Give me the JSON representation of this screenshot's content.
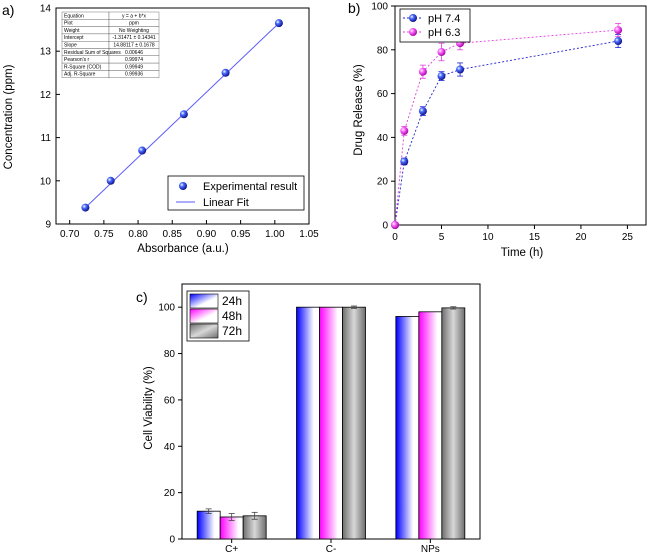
{
  "chart_data": [
    {
      "panel": "a)",
      "type": "scatter",
      "xlabel": "Absorbance (a.u.)",
      "ylabel": "Concentration (ppm)",
      "xlim": [
        0.68,
        1.05
      ],
      "ylim": [
        9,
        14
      ],
      "xticks": [
        "0.70",
        "0.75",
        "0.80",
        "0.85",
        "0.90",
        "0.95",
        "1.00",
        "1.05"
      ],
      "yticks": [
        "9",
        "10",
        "11",
        "12",
        "13",
        "14"
      ],
      "series": [
        {
          "name": "Experimental result",
          "x": [
            0.723,
            0.76,
            0.806,
            0.867,
            0.928,
            1.006
          ],
          "y": [
            9.38,
            10.0,
            10.7,
            11.54,
            12.5,
            13.65
          ]
        },
        {
          "name": "Linear Fit",
          "x": [
            0.723,
            1.006
          ],
          "y": [
            9.38,
            13.65
          ]
        }
      ],
      "fit_table": [
        [
          "Equation",
          "y = a + b*x"
        ],
        [
          "Plot",
          "ppm"
        ],
        [
          "Weight",
          "No Weighting"
        ],
        [
          "Intercept",
          "-1.31471 ± 0.14341"
        ],
        [
          "Slope",
          "14.88117 ± 0.1678"
        ],
        [
          "Residual Sum of Squares",
          "0.00646"
        ],
        [
          "Pearson's r",
          "0.99974"
        ],
        [
          "R-Square (COD)",
          "0.99949"
        ],
        [
          "Adj. R-Square",
          "0.99936"
        ]
      ]
    },
    {
      "panel": "b)",
      "type": "line",
      "xlabel": "Time (h)",
      "ylabel": "Drug Release (%)",
      "xlim": [
        0,
        27
      ],
      "ylim": [
        0,
        100
      ],
      "xticks": [
        "0",
        "5",
        "10",
        "15",
        "20",
        "25"
      ],
      "yticks": [
        "0",
        "20",
        "40",
        "60",
        "80",
        "100"
      ],
      "x": [
        0,
        1,
        3,
        5,
        7,
        24
      ],
      "series": [
        {
          "name": "pH 7.4",
          "color": "#2020d0",
          "values": [
            0,
            29,
            52,
            68,
            71,
            84
          ],
          "errors": [
            0,
            1.5,
            2,
            2,
            3,
            3
          ]
        },
        {
          "name": "pH 6.3",
          "color": "#e040e0",
          "values": [
            0,
            43,
            70,
            79,
            83,
            89
          ],
          "errors": [
            0,
            2,
            3,
            4,
            3,
            3
          ]
        }
      ]
    },
    {
      "panel": "c)",
      "type": "bar",
      "ylabel": "Cell Viability (%)",
      "ylim": [
        0,
        110
      ],
      "yticks": [
        "0",
        "20",
        "40",
        "60",
        "80",
        "100"
      ],
      "categories": [
        "C+",
        "C-",
        "NPs"
      ],
      "series": [
        {
          "name": "24h",
          "values": [
            12,
            100,
            96
          ],
          "errors": [
            1,
            0,
            0
          ]
        },
        {
          "name": "48h",
          "values": [
            9.5,
            100,
            98
          ],
          "errors": [
            1.5,
            0,
            0
          ]
        },
        {
          "name": "72h",
          "values": [
            10,
            100,
            99.7
          ],
          "errors": [
            1.5,
            0.5,
            0.5
          ]
        }
      ]
    }
  ]
}
